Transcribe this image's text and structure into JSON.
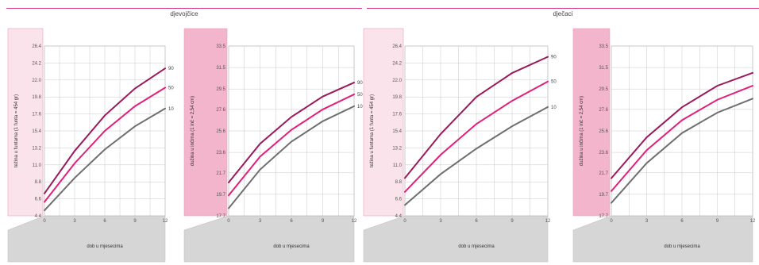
{
  "sections": [
    {
      "title": "djevojčice"
    },
    {
      "title": "dječaci"
    }
  ],
  "colors": {
    "accent": "#d63a87",
    "p90": "#9a1a5c",
    "p50": "#e0207a",
    "p10": "#6f6f6f",
    "panel_light": "#fbe3ec",
    "panel_dark": "#f3b5cb",
    "grid": "#c8c8c8"
  },
  "chart_data": [
    {
      "type": "line",
      "panel": "light",
      "ylabel": "težina u funtama (1 funta = 454 gr)",
      "xlabel": "dob u mjesecima",
      "x_ticks": [
        "0",
        "3",
        "6",
        "9",
        "12"
      ],
      "y_ticks": [
        "4.4",
        "6.6",
        "8.8",
        "11.0",
        "13.2",
        "15.4",
        "17.6",
        "19.8",
        "22.0",
        "24.2",
        "26.4"
      ],
      "ylim": [
        4.4,
        26.4
      ],
      "xlim": [
        0,
        12
      ],
      "grid": true,
      "series": [
        {
          "name": "90",
          "role": "p90",
          "x": [
            0,
            3,
            6,
            9,
            12
          ],
          "y": [
            7.3,
            12.8,
            17.4,
            20.9,
            23.5
          ]
        },
        {
          "name": "50",
          "role": "p50",
          "x": [
            0,
            3,
            6,
            9,
            12
          ],
          "y": [
            6.2,
            11.2,
            15.4,
            18.6,
            21.0
          ]
        },
        {
          "name": "10",
          "role": "p10",
          "x": [
            0,
            3,
            6,
            9,
            12
          ],
          "y": [
            5.1,
            9.3,
            13.0,
            16.0,
            18.3
          ]
        }
      ]
    },
    {
      "type": "line",
      "panel": "dark",
      "ylabel": "dužina u inčima (1 inč = 2,54 cm)",
      "xlabel": "dob u mjesecima",
      "x_ticks": [
        "0",
        "3",
        "6",
        "9",
        "12"
      ],
      "y_ticks": [
        "17.7",
        "19.7",
        "21.7",
        "23.6",
        "25.6",
        "27.6",
        "29.5",
        "31.5",
        "33.5"
      ],
      "ylim": [
        17.7,
        33.5
      ],
      "xlim": [
        0,
        12
      ],
      "grid": true,
      "series": [
        {
          "name": "90",
          "role": "p90",
          "x": [
            0,
            3,
            6,
            9,
            12
          ],
          "y": [
            20.8,
            24.4,
            26.9,
            28.8,
            30.1
          ]
        },
        {
          "name": "50",
          "role": "p50",
          "x": [
            0,
            3,
            6,
            9,
            12
          ],
          "y": [
            19.6,
            23.2,
            25.7,
            27.6,
            29.0
          ]
        },
        {
          "name": "10",
          "role": "p10",
          "x": [
            0,
            3,
            6,
            9,
            12
          ],
          "y": [
            18.4,
            22.0,
            24.6,
            26.5,
            27.9
          ]
        }
      ]
    },
    {
      "type": "line",
      "panel": "light",
      "ylabel": "težina u funtama (1 funta = 454 gr)",
      "xlabel": "dob u mjesecima",
      "x_ticks": [
        "0",
        "3",
        "6",
        "9",
        "12"
      ],
      "y_ticks": [
        "4.4",
        "6.6",
        "8.8",
        "11.0",
        "13.2",
        "15.4",
        "17.6",
        "19.8",
        "22.0",
        "24.2",
        "26.4"
      ],
      "ylim": [
        4.4,
        26.4
      ],
      "xlim": [
        0,
        12
      ],
      "grid": true,
      "series": [
        {
          "name": "90",
          "role": "p90",
          "x": [
            0,
            3,
            6,
            9,
            12
          ],
          "y": [
            9.3,
            15.0,
            19.8,
            22.9,
            25.0
          ]
        },
        {
          "name": "50",
          "role": "p50",
          "x": [
            0,
            3,
            6,
            9,
            12
          ],
          "y": [
            7.5,
            12.3,
            16.3,
            19.3,
            21.8
          ]
        },
        {
          "name": "10",
          "role": "p10",
          "x": [
            0,
            3,
            6,
            9,
            12
          ],
          "y": [
            5.8,
            9.8,
            13.1,
            16.0,
            18.5
          ]
        }
      ]
    },
    {
      "type": "line",
      "panel": "dark",
      "ylabel": "dužina u inčima (1 inč = 2,54 cm)",
      "xlabel": "dob u mjesecima",
      "x_ticks": [
        "0",
        "3",
        "6",
        "9",
        "12"
      ],
      "y_ticks": [
        "17.7",
        "19.7",
        "21.7",
        "23.6",
        "25.6",
        "27.6",
        "29.5",
        "31.5",
        "33.5"
      ],
      "ylim": [
        17.7,
        33.5
      ],
      "xlim": [
        0,
        12
      ],
      "grid": true,
      "series": [
        {
          "name": "",
          "role": "p90",
          "x": [
            0,
            3,
            6,
            9,
            12
          ],
          "y": [
            21.2,
            25.0,
            27.8,
            29.8,
            31.0
          ]
        },
        {
          "name": "",
          "role": "p50",
          "x": [
            0,
            3,
            6,
            9,
            12
          ],
          "y": [
            20.0,
            23.8,
            26.6,
            28.5,
            29.8
          ]
        },
        {
          "name": "",
          "role": "p10",
          "x": [
            0,
            3,
            6,
            9,
            12
          ],
          "y": [
            18.9,
            22.6,
            25.4,
            27.3,
            28.6
          ]
        }
      ]
    }
  ]
}
